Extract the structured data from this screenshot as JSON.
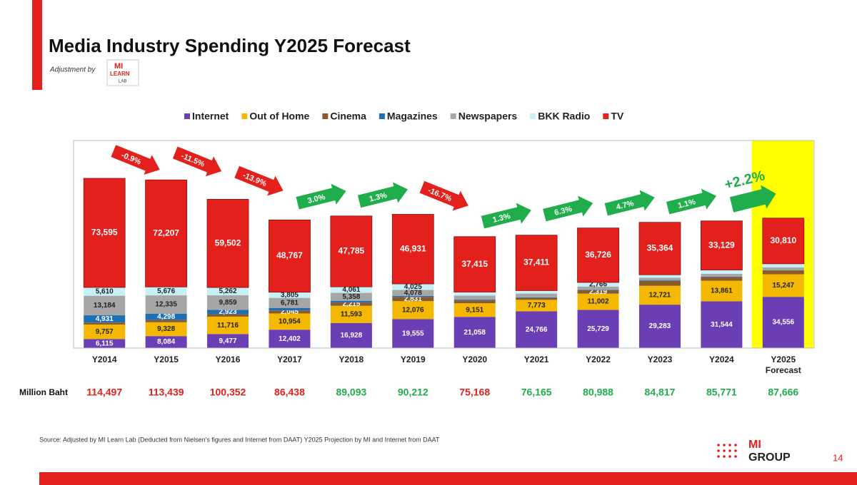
{
  "header": {
    "title": "Media Industry Spending Y2025 Forecast",
    "subtitle": "Adjustment by",
    "logo": [
      "MI",
      "LEARN",
      "LAB"
    ]
  },
  "chart_data": {
    "type": "stacked_bar",
    "categories": [
      "Y2014",
      "Y2015",
      "Y2016",
      "Y2017",
      "Y2018",
      "Y2019",
      "Y2020",
      "Y2021",
      "Y2022",
      "Y2023",
      "Y2024",
      "Y2025 Forecast"
    ],
    "ylim": [
      0,
      140000
    ],
    "series": [
      {
        "name": "Internet",
        "color": "#6a3fb5",
        "values": [
          6115,
          8084,
          9477,
          12402,
          16928,
          19555,
          21058,
          24766,
          25729,
          29283,
          31544,
          34556
        ],
        "value_labels": [
          "6,115",
          "8,084",
          "9,477",
          "12,402",
          "16,928",
          "19,555",
          "21,058",
          "24,766",
          "25,729",
          "29,283",
          "31,544",
          "34,556"
        ]
      },
      {
        "name": "Out of Home",
        "color": "#f5b800",
        "values": [
          9757,
          9328,
          11716,
          10954,
          11593,
          12076,
          9151,
          7773,
          11002,
          12721,
          13861,
          15247
        ],
        "value_labels": [
          "9,757",
          "9,328",
          "11,716",
          "10,954",
          "11,593",
          "12,076",
          "9,151",
          "7,773",
          "11,002",
          "12,721",
          "13,861",
          "15,247"
        ]
      },
      {
        "name": "Cinema",
        "color": "#8b5a2b",
        "values": [
          1305,
          1511,
          1613,
          2045,
          2215,
          2831,
          1966,
          1315,
          2319,
          3200,
          2400,
          2453
        ],
        "value_labels": [
          null,
          null,
          null,
          "2,045",
          "2,215",
          "2,831",
          null,
          null,
          "2,319",
          null,
          null,
          null
        ]
      },
      {
        "name": "Magazines",
        "color": "#1f6fb5",
        "values": [
          4931,
          4298,
          2923,
          1684,
          1153,
          716,
          500,
          400,
          346,
          440,
          327,
          300
        ],
        "value_labels": [
          "4,931",
          "4,298",
          "2,923",
          null,
          null,
          null,
          null,
          null,
          null,
          null,
          null,
          null
        ]
      },
      {
        "name": "Newspapers",
        "color": "#a6a6a6",
        "values": [
          13184,
          12335,
          9859,
          6781,
          5358,
          4078,
          2759,
          2500,
          2100,
          1831,
          1900,
          1800
        ],
        "value_labels": [
          "13,184",
          "12,335",
          "9,859",
          "6,781",
          "5,358",
          "4,078",
          null,
          null,
          null,
          null,
          null,
          null
        ]
      },
      {
        "name": "BKK Radio",
        "color": "#c8f0f8",
        "values": [
          5610,
          5676,
          5262,
          3805,
          4061,
          4025,
          2319,
          2000,
          2766,
          1978,
          2610,
          2500
        ],
        "value_labels": [
          "5,610",
          "5,676",
          "5,262",
          "3,805",
          "4,061",
          "4,025",
          null,
          null,
          "2,766",
          null,
          null,
          null
        ]
      },
      {
        "name": "TV",
        "color": "#e3201b",
        "values": [
          73595,
          72207,
          59502,
          48767,
          47785,
          46931,
          37415,
          37411,
          36726,
          35364,
          33129,
          30810
        ],
        "value_labels": [
          "73,595",
          "72,207",
          "59,502",
          "48,767",
          "47,785",
          "46,931",
          "37,415",
          "37,411",
          "36,726",
          "35,364",
          "33,129",
          "30,810"
        ]
      }
    ],
    "totals": {
      "label": "Million Baht",
      "values": [
        114497,
        113439,
        100352,
        86438,
        89093,
        90212,
        75168,
        76165,
        80988,
        84817,
        85771,
        87666
      ],
      "value_labels": [
        "114,497",
        "113,439",
        "100,352",
        "86,438",
        "89,093",
        "90,212",
        "75,168",
        "76,165",
        "80,988",
        "84,817",
        "85,771",
        "87,666"
      ],
      "colors": [
        "#e3201b",
        "#e3201b",
        "#e3201b",
        "#e3201b",
        "#1fae4b",
        "#1fae4b",
        "#e3201b",
        "#1fae4b",
        "#1fae4b",
        "#1fae4b",
        "#1fae4b",
        "#1fae4b"
      ]
    },
    "changes": {
      "values": [
        -0.9,
        -11.5,
        -13.9,
        3.0,
        1.3,
        -16.7,
        1.3,
        6.3,
        4.7,
        1.1,
        2.2
      ],
      "value_labels": [
        "-0.9%",
        "-11.5%",
        "-13.9%",
        "3.0%",
        "1.3%",
        "-16.7%",
        "1.3%",
        "6.3%",
        "4.7%",
        "1.1%",
        "+2.2%"
      ]
    },
    "highlight_color": "#ffff00"
  },
  "footer": {
    "source": "Source: Adjusted by MI Learn Lab (Deducted  from Nielsen's figures and Internet from DAAT) Y2025 Projection by MI and Internet from DAAT",
    "brand": [
      "MI",
      "GROUP"
    ],
    "page": "14"
  }
}
